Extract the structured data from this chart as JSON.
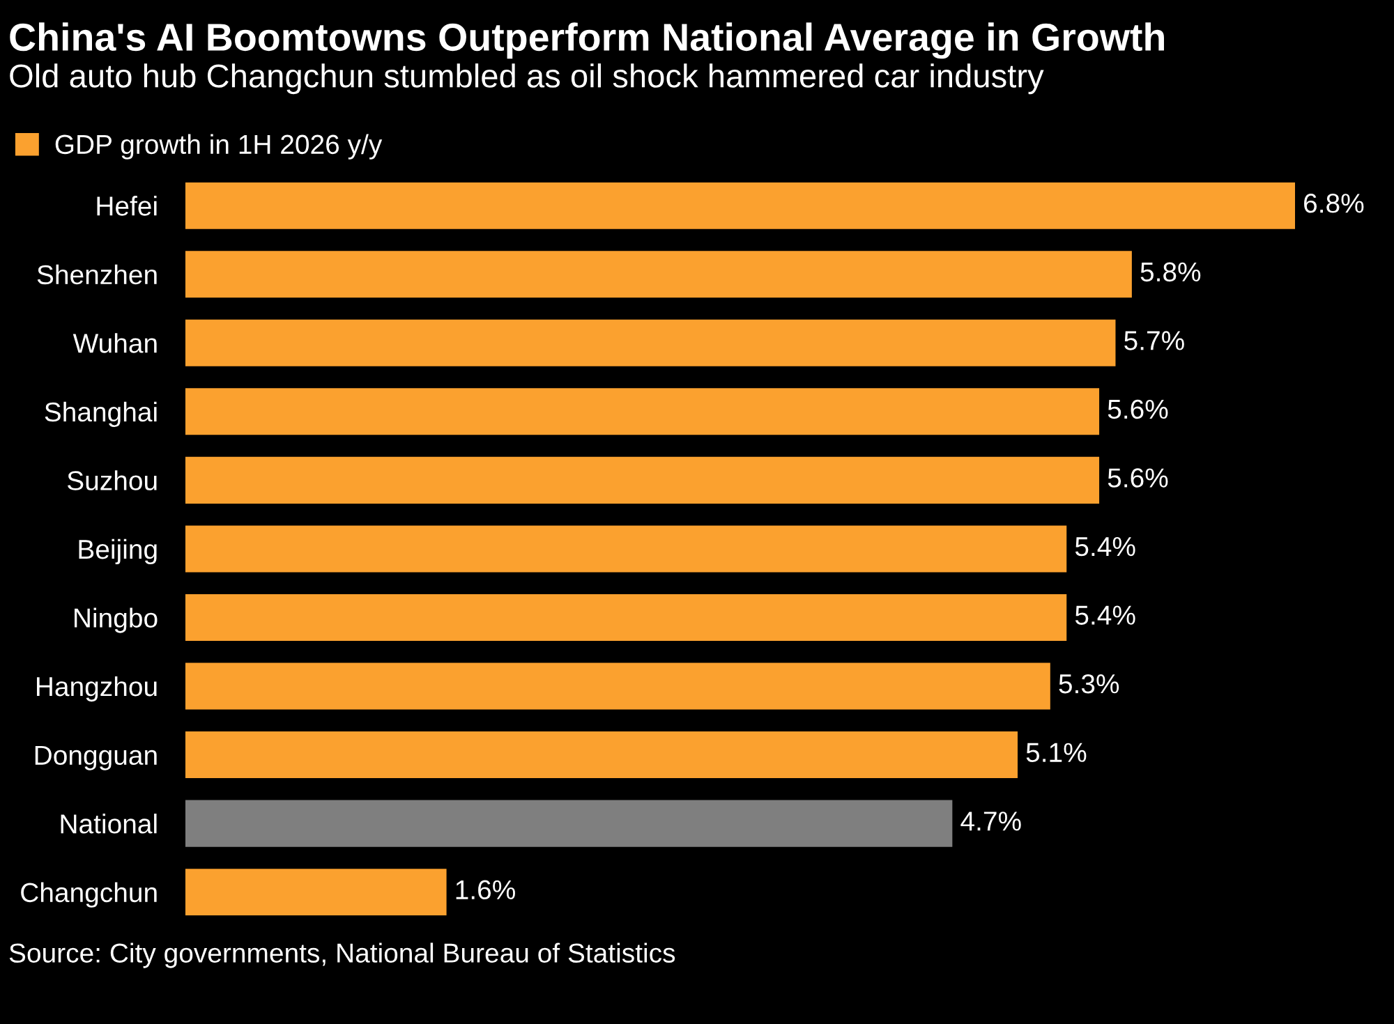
{
  "chart_data": {
    "type": "bar",
    "orientation": "horizontal",
    "title": "China's AI Boomtowns Outperform National Average in Growth",
    "subtitle": "Old auto hub Changchun stumbled as oil shock hammered car industry",
    "categories": [
      "Hefei",
      "Shenzhen",
      "Wuhan",
      "Shanghai",
      "Suzhou",
      "Beijing",
      "Ningbo",
      "Hangzhou",
      "Dongguan",
      "National",
      "Changchun"
    ],
    "series": [
      {
        "name": "GDP growth in 1H 2026 y/y",
        "color": "#fba12f",
        "values": [
          6.8,
          5.8,
          5.7,
          5.6,
          5.6,
          5.4,
          5.4,
          5.3,
          5.1,
          4.7,
          1.6
        ],
        "colors": [
          "#fba12f",
          "#fba12f",
          "#fba12f",
          "#fba12f",
          "#fba12f",
          "#fba12f",
          "#fba12f",
          "#fba12f",
          "#fba12f",
          "#7f7f7f",
          "#fba12f"
        ],
        "value_labels": [
          "6.8%",
          "5.8%",
          "5.7%",
          "5.6%",
          "5.6%",
          "5.4%",
          "5.4%",
          "5.3%",
          "5.1%",
          "4.7%",
          "1.6%"
        ]
      }
    ],
    "legend": "top left",
    "grid": false,
    "annotations": [
      "Source: City governments, National Bureau of Statistics"
    ]
  }
}
